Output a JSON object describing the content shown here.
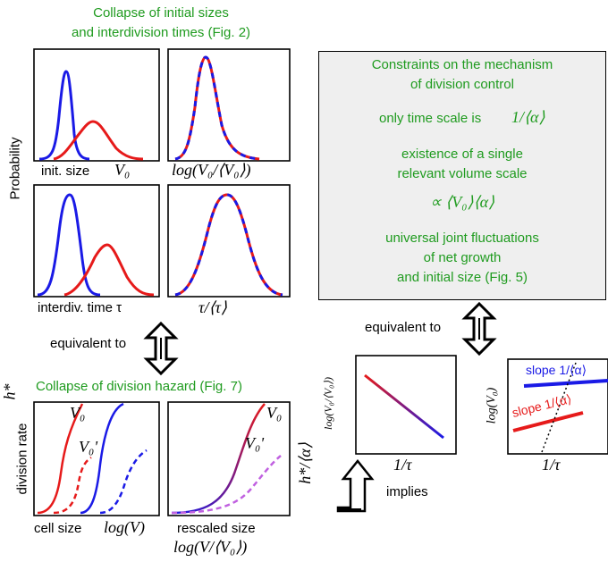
{
  "colors": {
    "accent_green": "#1f9b1f",
    "blue": "#1a1ae6",
    "red": "#e61a1a",
    "box_bg": "#efefef"
  },
  "top_title": [
    "Collapse of initial sizes",
    "and interdivision times (Fig. 2)"
  ],
  "y_label_probability": "Probability",
  "panel_labels": {
    "init_size": "init. size",
    "init_size_var": "V₀",
    "log_ratio": "log(V₀/⟨V₀⟩)",
    "interdiv": "interdiv. time τ",
    "tau_ratio": "τ/⟨τ⟩"
  },
  "equivalent_left": "equivalent to",
  "equivalent_right": "equivalent to",
  "hazard_title": "Collapse of division hazard (Fig. 7)",
  "hazard_symbol": "h*",
  "division_rate": "division rate",
  "curve_V0": "V₀",
  "curve_V0p": "V₀'",
  "hazard_right_axis": "h*/⟨α⟩",
  "cell_size": "cell size",
  "logV": "log(V)",
  "rescaled_size": "rescaled size",
  "rescaled_formula": "log(V/⟨V₀⟩)",
  "box": {
    "line1": "Constraints on the mechanism",
    "line2": "of division control",
    "time_scale": "only time scale is",
    "time_scale_math": "1/⟨α⟩",
    "vol1": "existence of a single",
    "vol2": "relevant volume scale",
    "vol_math": "∝ ⟨V₀⟩⟨α⟩",
    "joint1": "universal joint fluctuations",
    "joint2": "of net growth",
    "joint3": "and initial size (Fig. 5)"
  },
  "bottom_right": {
    "ylabel_left": "log(V₀/⟨V₀⟩)",
    "xlabel_left": "1/τ",
    "implies": "implies",
    "ylabel_right": "log(V₀)",
    "xlabel_right": "1/τ",
    "slope_blue": "slope 1/⟨α⟩",
    "slope_red": "slope 1/⟨α⟩"
  }
}
